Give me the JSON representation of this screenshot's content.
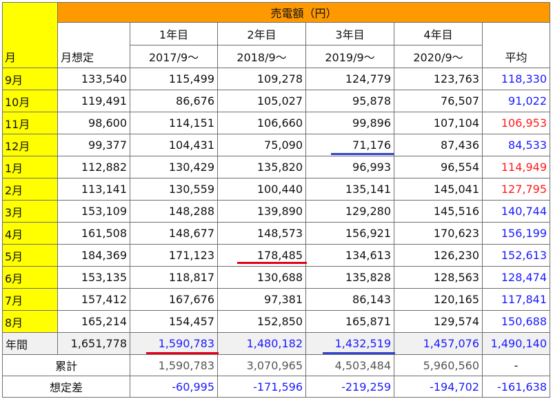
{
  "table": {
    "title": "売電額（円）",
    "header": {
      "month_label": "月",
      "expected_label": "月想定",
      "average_label": "平均",
      "years": [
        {
          "label": "1年目",
          "period": "2017/9～"
        },
        {
          "label": "2年目",
          "period": "2018/9～"
        },
        {
          "label": "3年目",
          "period": "2019/9～"
        },
        {
          "label": "4年目",
          "period": "2020/9～"
        }
      ]
    },
    "rows": [
      {
        "month": "9月",
        "expected": "133,540",
        "y1": "115,499",
        "y2": "109,278",
        "y3": "124,779",
        "y4": "123,763",
        "avg": "118,330",
        "avg_color": "blue"
      },
      {
        "month": "10月",
        "expected": "119,491",
        "y1": "86,676",
        "y2": "105,027",
        "y3": "95,878",
        "y4": "76,507",
        "avg": "91,022",
        "avg_color": "blue"
      },
      {
        "month": "11月",
        "expected": "98,600",
        "y1": "114,151",
        "y2": "106,660",
        "y3": "99,896",
        "y4": "107,104",
        "avg": "106,953",
        "avg_color": "red"
      },
      {
        "month": "12月",
        "expected": "99,377",
        "y1": "104,431",
        "y2": "75,090",
        "y3": "71,176",
        "y4": "87,436",
        "avg": "84,533",
        "avg_color": "blue"
      },
      {
        "month": "1月",
        "expected": "112,882",
        "y1": "130,429",
        "y2": "135,820",
        "y3": "96,993",
        "y4": "96,554",
        "avg": "114,949",
        "avg_color": "red"
      },
      {
        "month": "2月",
        "expected": "113,141",
        "y1": "130,559",
        "y2": "100,440",
        "y3": "135,141",
        "y4": "145,041",
        "avg": "127,795",
        "avg_color": "red"
      },
      {
        "month": "3月",
        "expected": "153,109",
        "y1": "148,288",
        "y2": "139,890",
        "y3": "129,280",
        "y4": "145,516",
        "avg": "140,744",
        "avg_color": "blue"
      },
      {
        "month": "4月",
        "expected": "161,508",
        "y1": "148,677",
        "y2": "148,573",
        "y3": "156,921",
        "y4": "170,623",
        "avg": "156,199",
        "avg_color": "blue"
      },
      {
        "month": "5月",
        "expected": "184,369",
        "y1": "171,123",
        "y2": "178,485",
        "y3": "134,613",
        "y4": "126,230",
        "avg": "152,613",
        "avg_color": "blue"
      },
      {
        "month": "6月",
        "expected": "153,135",
        "y1": "118,817",
        "y2": "130,688",
        "y3": "135,828",
        "y4": "128,563",
        "avg": "128,474",
        "avg_color": "blue"
      },
      {
        "month": "7月",
        "expected": "157,412",
        "y1": "167,676",
        "y2": "97,381",
        "y3": "86,143",
        "y4": "120,165",
        "avg": "117,841",
        "avg_color": "blue"
      },
      {
        "month": "8月",
        "expected": "165,214",
        "y1": "154,457",
        "y2": "152,850",
        "y3": "165,871",
        "y4": "129,574",
        "avg": "150,688",
        "avg_color": "blue"
      }
    ],
    "annual": {
      "label": "年間",
      "expected": "1,651,778",
      "y1": "1,590,783",
      "y2": "1,480,182",
      "y3": "1,432,519",
      "y4": "1,457,076",
      "avg": "1,490,140"
    },
    "cumulative": {
      "label": "累計",
      "y1": "1,590,783",
      "y2": "3,070,965",
      "y3": "4,503,484",
      "y4": "5,960,560",
      "avg": "-"
    },
    "difference": {
      "label": "想定差",
      "y1": "-60,995",
      "y2": "-171,596",
      "y3": "-219,259",
      "y4": "-194,702",
      "avg": "-161,638"
    }
  },
  "colors": {
    "title_bg": "#ff9900",
    "month_bg": "#ffff00",
    "annual_bg": "#f1f1f1",
    "average_blue": "#1a1aff",
    "average_red": "#ff1a1a",
    "highlight_blue_line": "#3344cc",
    "highlight_red_line": "#e0001a"
  },
  "highlights": [
    {
      "cell": "12月 / 3年目",
      "color": "blue"
    },
    {
      "cell": "5月 / 2年目",
      "color": "red"
    },
    {
      "cell": "年間 / 1年目",
      "color": "red"
    },
    {
      "cell": "年間 / 3年目",
      "color": "blue"
    }
  ]
}
